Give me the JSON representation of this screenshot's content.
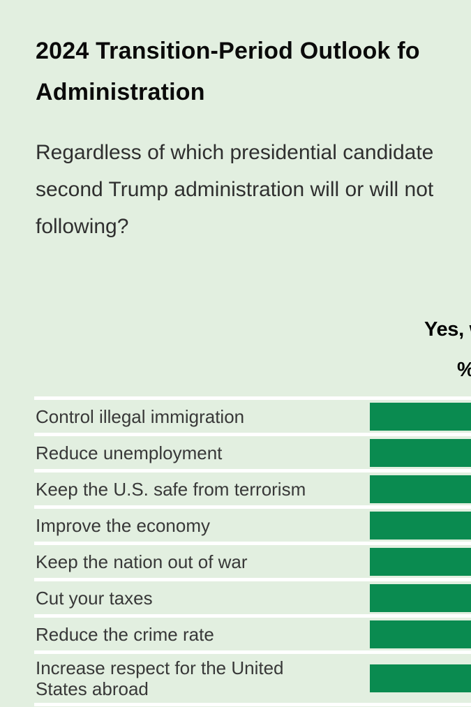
{
  "page": {
    "background": "#e2efe0",
    "title_lines": [
      "2024 Transition-Period Outlook fo",
      "Administration"
    ],
    "subtitle_lines": [
      "Regardless of which presidential candidate",
      "second Trump administration will or will not",
      "following?"
    ]
  },
  "header": {
    "column_label": "Yes, w",
    "unit_label": "%"
  },
  "table": {
    "bar_color": "#0a8b50",
    "separator_color": "#ffffff",
    "rows": [
      {
        "label": "Control illegal immigration"
      },
      {
        "label": "Reduce unemployment"
      },
      {
        "label": "Keep the U.S. safe from terrorism"
      },
      {
        "label": "Improve the economy"
      },
      {
        "label": "Keep the nation out of war"
      },
      {
        "label": "Cut your taxes"
      },
      {
        "label": "Reduce the crime rate"
      },
      {
        "label": "Increase respect for the United States abroad"
      }
    ]
  },
  "chart_data": {
    "type": "bar",
    "orientation": "horizontal",
    "title": "2024 Transition-Period Outlook fo… Administration (right side cropped)",
    "subtitle": "Regardless of which presidential candidate… second Trump administration will or will not… following? (right side cropped)",
    "column_header": "Yes, w…",
    "unit": "%",
    "categories": [
      "Control illegal immigration",
      "Reduce unemployment",
      "Keep the U.S. safe from terrorism",
      "Improve the economy",
      "Keep the nation out of war",
      "Cut your taxes",
      "Reduce the crime rate",
      "Increase respect for the United States abroad"
    ],
    "values": [
      null,
      null,
      null,
      null,
      null,
      null,
      null,
      null
    ],
    "bar_color": "#0a8b50",
    "legend": "none",
    "grid": "off",
    "note": "Numeric bar values are cropped off the right edge of the screenshot; every visible bar starts at the same baseline (x≈530px) and extends past the image edge."
  }
}
